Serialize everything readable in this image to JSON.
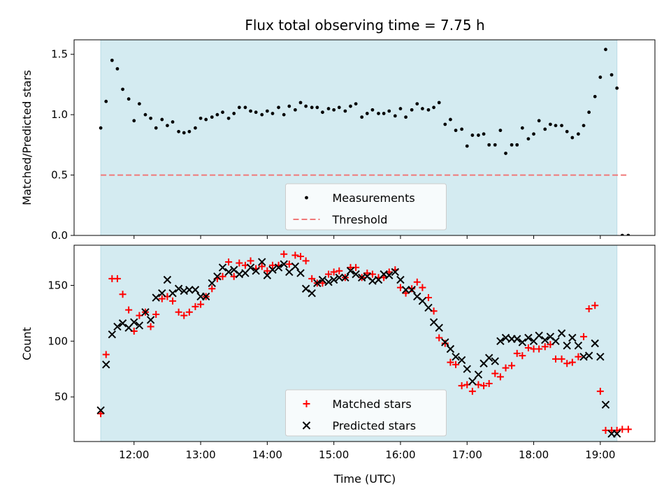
{
  "title": "Flux total observing time = 7.75 h",
  "x_axis": {
    "label": "Time (UTC)",
    "ticks": [
      {
        "value": 12.0,
        "label": "12:00"
      },
      {
        "value": 13.0,
        "label": "13:00"
      },
      {
        "value": 14.0,
        "label": "14:00"
      },
      {
        "value": 15.0,
        "label": "15:00"
      },
      {
        "value": 16.0,
        "label": "16:00"
      },
      {
        "value": 17.0,
        "label": "17:00"
      },
      {
        "value": 18.0,
        "label": "18:00"
      },
      {
        "value": 19.0,
        "label": "19:00"
      }
    ]
  },
  "colors": {
    "observing_band": "#d4ebf1",
    "measurements": "#000000",
    "threshold": "#f07878",
    "matched": "#ff0000",
    "predicted": "#000000"
  },
  "chart_data": [
    {
      "type": "scatter",
      "ylabel": "Matched/Predicted stars",
      "xlim": [
        11.1,
        19.82
      ],
      "ylim": [
        0.0,
        1.62
      ],
      "yticks": [
        {
          "value": 0.0,
          "label": "0.0"
        },
        {
          "value": 0.5,
          "label": "0.5"
        },
        {
          "value": 1.0,
          "label": "1.0"
        },
        {
          "value": 1.5,
          "label": "1.5"
        }
      ],
      "observing_span": [
        11.5,
        19.25
      ],
      "threshold": {
        "name": "Threshold",
        "value": 0.5,
        "x": [
          11.5,
          19.42
        ]
      },
      "legend": {
        "placement": "lower-center",
        "entries": [
          "Measurements",
          "Threshold"
        ]
      },
      "series": [
        {
          "name": "Measurements",
          "x": [
            11.5,
            11.58,
            11.67,
            11.75,
            11.83,
            11.92,
            12.0,
            12.08,
            12.17,
            12.25,
            12.33,
            12.42,
            12.5,
            12.58,
            12.67,
            12.75,
            12.83,
            12.92,
            13.0,
            13.08,
            13.17,
            13.25,
            13.33,
            13.42,
            13.5,
            13.58,
            13.67,
            13.75,
            13.83,
            13.92,
            14.0,
            14.08,
            14.17,
            14.25,
            14.33,
            14.42,
            14.5,
            14.58,
            14.67,
            14.75,
            14.83,
            14.92,
            15.0,
            15.08,
            15.17,
            15.25,
            15.33,
            15.42,
            15.5,
            15.58,
            15.67,
            15.75,
            15.83,
            15.92,
            16.0,
            16.08,
            16.17,
            16.25,
            16.33,
            16.42,
            16.5,
            16.58,
            16.67,
            16.75,
            16.83,
            16.92,
            17.0,
            17.08,
            17.17,
            17.25,
            17.33,
            17.42,
            17.5,
            17.58,
            17.67,
            17.75,
            17.83,
            17.92,
            18.0,
            18.08,
            18.17,
            18.25,
            18.33,
            18.42,
            18.5,
            18.58,
            18.67,
            18.75,
            18.83,
            18.92,
            19.0,
            19.08,
            19.17,
            19.25,
            19.33,
            19.42
          ],
          "y": [
            0.89,
            1.11,
            1.45,
            1.38,
            1.21,
            1.13,
            0.95,
            1.09,
            1.0,
            0.97,
            0.89,
            0.96,
            0.91,
            0.94,
            0.86,
            0.85,
            0.86,
            0.89,
            0.97,
            0.96,
            0.98,
            1.0,
            1.02,
            0.97,
            1.01,
            1.06,
            1.06,
            1.03,
            1.02,
            1.0,
            1.03,
            1.01,
            1.06,
            1.0,
            1.07,
            1.04,
            1.1,
            1.07,
            1.06,
            1.06,
            1.02,
            1.05,
            1.04,
            1.06,
            1.03,
            1.07,
            1.09,
            0.98,
            1.01,
            1.04,
            1.01,
            1.01,
            1.03,
            0.99,
            1.05,
            0.98,
            1.04,
            1.09,
            1.05,
            1.04,
            1.06,
            1.1,
            0.92,
            0.96,
            0.87,
            0.88,
            0.74,
            0.83,
            0.83,
            0.84,
            0.75,
            0.75,
            0.87,
            0.68,
            0.75,
            0.75,
            0.89,
            0.8,
            0.84,
            0.95,
            0.88,
            0.92,
            0.91,
            0.91,
            0.86,
            0.81,
            0.84,
            0.91,
            1.02,
            1.15,
            1.31,
            1.54,
            1.33,
            1.22,
            0.0,
            0.0
          ]
        }
      ]
    },
    {
      "type": "scatter",
      "ylabel": "Count",
      "xlabel": "Time (UTC)",
      "xlim": [
        11.1,
        19.82
      ],
      "ylim": [
        10,
        186
      ],
      "yticks": [
        {
          "value": 50,
          "label": "50"
        },
        {
          "value": 100,
          "label": "100"
        },
        {
          "value": 150,
          "label": "150"
        }
      ],
      "observing_span": [
        11.5,
        19.25
      ],
      "legend": {
        "placement": "lower-center",
        "entries": [
          "Matched stars",
          "Predicted stars"
        ]
      },
      "series": [
        {
          "name": "Matched stars",
          "marker": "plus",
          "x": [
            11.5,
            11.58,
            11.67,
            11.75,
            11.83,
            11.92,
            12.0,
            12.08,
            12.17,
            12.25,
            12.33,
            12.42,
            12.5,
            12.58,
            12.67,
            12.75,
            12.83,
            12.92,
            13.0,
            13.08,
            13.17,
            13.25,
            13.33,
            13.42,
            13.5,
            13.58,
            13.67,
            13.75,
            13.83,
            13.92,
            14.0,
            14.08,
            14.17,
            14.25,
            14.33,
            14.42,
            14.5,
            14.58,
            14.67,
            14.75,
            14.83,
            14.92,
            15.0,
            15.08,
            15.17,
            15.25,
            15.33,
            15.42,
            15.5,
            15.58,
            15.67,
            15.75,
            15.83,
            15.92,
            16.0,
            16.08,
            16.17,
            16.25,
            16.33,
            16.42,
            16.5,
            16.58,
            16.67,
            16.75,
            16.83,
            16.92,
            17.0,
            17.08,
            17.17,
            17.25,
            17.33,
            17.42,
            17.5,
            17.58,
            17.67,
            17.75,
            17.83,
            17.92,
            18.0,
            18.08,
            18.17,
            18.25,
            18.33,
            18.42,
            18.5,
            18.58,
            18.67,
            18.75,
            18.83,
            18.92,
            19.0,
            19.08,
            19.17,
            19.25,
            19.33,
            19.42
          ],
          "y": [
            35,
            88,
            156,
            156,
            142,
            128,
            109,
            123,
            126,
            113,
            124,
            138,
            140,
            136,
            126,
            123,
            126,
            131,
            133,
            140,
            147,
            156,
            158,
            171,
            158,
            170,
            168,
            172,
            165,
            167,
            163,
            168,
            168,
            178,
            169,
            177,
            176,
            172,
            156,
            152,
            152,
            160,
            162,
            163,
            157,
            166,
            166,
            157,
            161,
            160,
            157,
            157,
            162,
            164,
            148,
            143,
            147,
            153,
            148,
            139,
            127,
            103,
            98,
            81,
            79,
            60,
            61,
            55,
            61,
            60,
            62,
            71,
            68,
            76,
            78,
            89,
            87,
            94,
            93,
            93,
            95,
            97,
            84,
            84,
            80,
            81,
            86,
            104,
            129,
            132,
            55,
            20,
            20,
            20,
            21,
            21
          ]
        },
        {
          "name": "Predicted stars",
          "marker": "x",
          "x": [
            11.5,
            11.58,
            11.67,
            11.75,
            11.83,
            11.92,
            12.0,
            12.08,
            12.17,
            12.25,
            12.33,
            12.42,
            12.5,
            12.58,
            12.67,
            12.75,
            12.83,
            12.92,
            13.0,
            13.08,
            13.17,
            13.25,
            13.33,
            13.42,
            13.5,
            13.58,
            13.67,
            13.75,
            13.83,
            13.92,
            14.0,
            14.08,
            14.17,
            14.25,
            14.33,
            14.42,
            14.5,
            14.58,
            14.67,
            14.75,
            14.83,
            14.92,
            15.0,
            15.08,
            15.17,
            15.25,
            15.33,
            15.42,
            15.5,
            15.58,
            15.67,
            15.75,
            15.83,
            15.92,
            16.0,
            16.08,
            16.17,
            16.25,
            16.33,
            16.42,
            16.5,
            16.58,
            16.67,
            16.75,
            16.83,
            16.92,
            17.0,
            17.08,
            17.17,
            17.25,
            17.33,
            17.42,
            17.5,
            17.58,
            17.67,
            17.75,
            17.83,
            17.92,
            18.0,
            18.08,
            18.17,
            18.25,
            18.33,
            18.42,
            18.5,
            18.58,
            18.67,
            18.75,
            18.83,
            18.92,
            19.0,
            19.08,
            19.17,
            19.25
          ],
          "y": [
            38,
            79,
            106,
            113,
            116,
            112,
            117,
            114,
            126,
            119,
            139,
            143,
            155,
            143,
            147,
            145,
            146,
            146,
            140,
            140,
            152,
            158,
            166,
            162,
            164,
            160,
            161,
            166,
            163,
            171,
            159,
            164,
            166,
            169,
            162,
            167,
            161,
            147,
            143,
            152,
            155,
            153,
            155,
            157,
            157,
            163,
            160,
            157,
            158,
            154,
            155,
            160,
            159,
            162,
            155,
            146,
            146,
            140,
            136,
            130,
            117,
            112,
            99,
            93,
            86,
            83,
            75,
            64,
            70,
            80,
            85,
            82,
            100,
            103,
            102,
            102,
            99,
            103,
            100,
            105,
            101,
            104,
            100,
            107,
            96,
            103,
            96,
            86,
            87,
            98,
            86,
            43,
            17,
            17
          ]
        }
      ]
    }
  ]
}
